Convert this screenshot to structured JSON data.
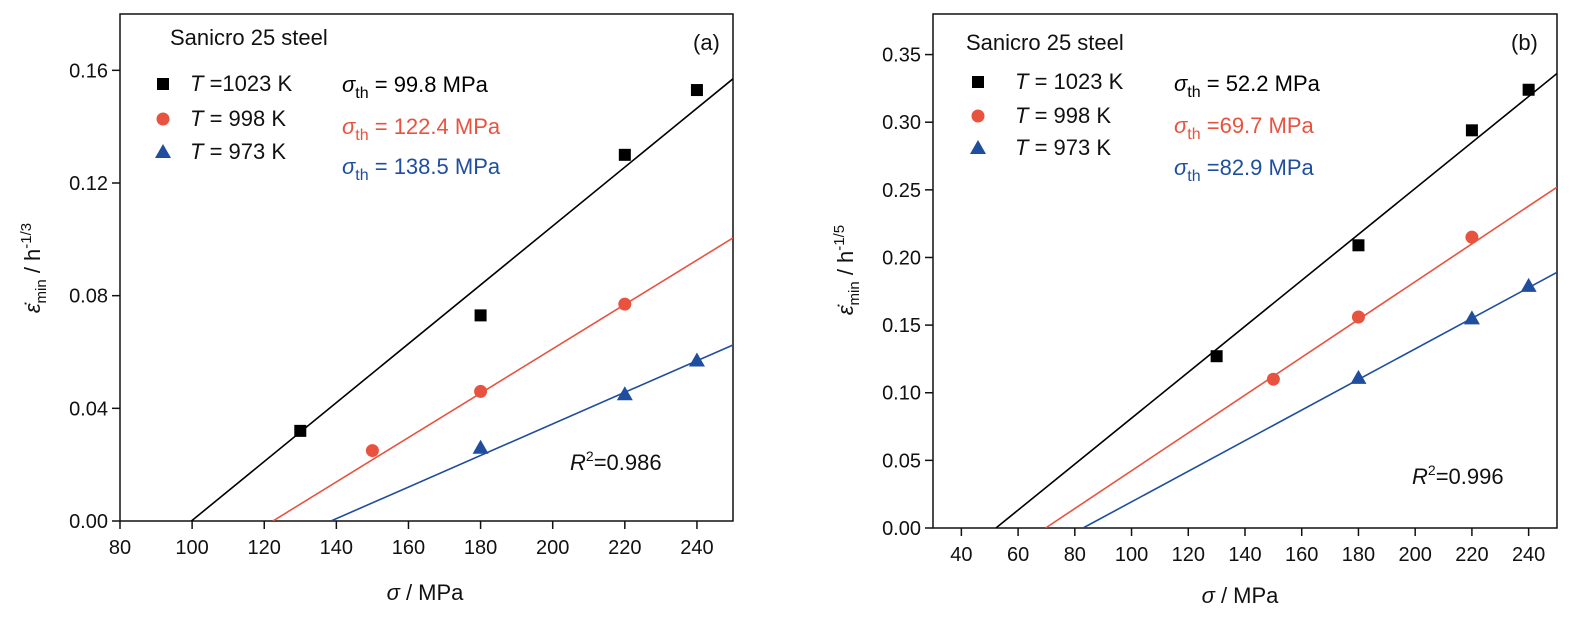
{
  "chart_data": [
    {
      "type": "scatter",
      "panel_label": "(a)",
      "material": "Sanicro 25 steel",
      "xlabel": {
        "symbol": "σ",
        "unit": " / MPa"
      },
      "ylabel": {
        "symbol": "ε̇",
        "sub": "min",
        "unit": " / h",
        "sup": "-1/3"
      },
      "xlim": [
        80,
        250
      ],
      "ylim": [
        0,
        0.18
      ],
      "xticks": [
        80,
        100,
        120,
        140,
        160,
        180,
        200,
        220,
        240
      ],
      "yticks": [
        0.0,
        0.04,
        0.08,
        0.12,
        0.16
      ],
      "xtick_labels": [
        "80",
        "100",
        "120",
        "140",
        "160",
        "180",
        "200",
        "220",
        "240"
      ],
      "ytick_labels": [
        "0.00",
        "0.04",
        "0.08",
        "0.12",
        "0.16"
      ],
      "r2_text": "=0.986",
      "series": [
        {
          "name": "T =1023 K",
          "name_var": "T",
          "name_rest": " =1023 K",
          "color": "#000000",
          "marker": "square",
          "x": [
            130,
            180,
            220,
            240
          ],
          "y": [
            0.032,
            0.073,
            0.13,
            0.153
          ],
          "fit_x": [
            99.8,
            250
          ],
          "fit_y": [
            0.0,
            0.157
          ],
          "threshold_text": " = 99.8 MPa"
        },
        {
          "name": "T = 998 K",
          "name_var": "T",
          "name_rest": " = 998 K",
          "color": "#e8533f",
          "marker": "circle",
          "x": [
            150,
            180,
            220
          ],
          "y": [
            0.025,
            0.046,
            0.077
          ],
          "fit_x": [
            122.4,
            250
          ],
          "fit_y": [
            0.0,
            0.1005
          ],
          "threshold_text": " = 122.4 MPa"
        },
        {
          "name": "T = 973 K",
          "name_var": "T",
          "name_rest": " = 973 K",
          "color": "#1f4e9e",
          "marker": "triangle",
          "x": [
            180,
            220,
            240
          ],
          "y": [
            0.026,
            0.045,
            0.057
          ],
          "fit_x": [
            138.5,
            250
          ],
          "fit_y": [
            0.0,
            0.0625
          ],
          "threshold_text": " = 138.5 MPa"
        }
      ]
    },
    {
      "type": "scatter",
      "panel_label": "(b)",
      "material": "Sanicro 25 steel",
      "xlabel": {
        "symbol": "σ",
        "unit": " / MPa"
      },
      "ylabel": {
        "symbol": "ε̇",
        "sub": "min",
        "unit": " / h",
        "sup": "-1/5"
      },
      "xlim": [
        30,
        250
      ],
      "ylim": [
        0,
        0.38
      ],
      "xticks": [
        40,
        60,
        80,
        100,
        120,
        140,
        160,
        180,
        200,
        220,
        240
      ],
      "yticks": [
        0.0,
        0.05,
        0.1,
        0.15,
        0.2,
        0.25,
        0.3,
        0.35
      ],
      "xtick_labels": [
        "40",
        "60",
        "80",
        "100",
        "120",
        "140",
        "160",
        "180",
        "200",
        "220",
        "240"
      ],
      "ytick_labels": [
        "0.00",
        "0.05",
        "0.10",
        "0.15",
        "0.20",
        "0.25",
        "0.30",
        "0.35"
      ],
      "r2_text": "=0.996",
      "series": [
        {
          "name": "T = 1023 K",
          "name_var": "T",
          "name_rest": " = 1023 K",
          "color": "#000000",
          "marker": "square",
          "x": [
            130,
            180,
            220,
            240
          ],
          "y": [
            0.127,
            0.209,
            0.294,
            0.324
          ],
          "fit_x": [
            52.2,
            250
          ],
          "fit_y": [
            0.0,
            0.336
          ],
          "threshold_text": " = 52.2 MPa"
        },
        {
          "name": "T = 998 K",
          "name_var": "T",
          "name_rest": " = 998 K",
          "color": "#e8533f",
          "marker": "circle",
          "x": [
            150,
            180,
            220
          ],
          "y": [
            0.11,
            0.156,
            0.215
          ],
          "fit_x": [
            69.7,
            250
          ],
          "fit_y": [
            0.0,
            0.252
          ],
          "threshold_text": " =69.7 MPa"
        },
        {
          "name": "T = 973 K",
          "name_var": "T",
          "name_rest": " = 973 K",
          "color": "#1f4e9e",
          "marker": "triangle",
          "x": [
            180,
            220,
            240
          ],
          "y": [
            0.111,
            0.155,
            0.179
          ],
          "fit_x": [
            82.9,
            250
          ],
          "fit_y": [
            0.0,
            0.189
          ],
          "threshold_text": " =82.9 MPa"
        }
      ]
    }
  ]
}
